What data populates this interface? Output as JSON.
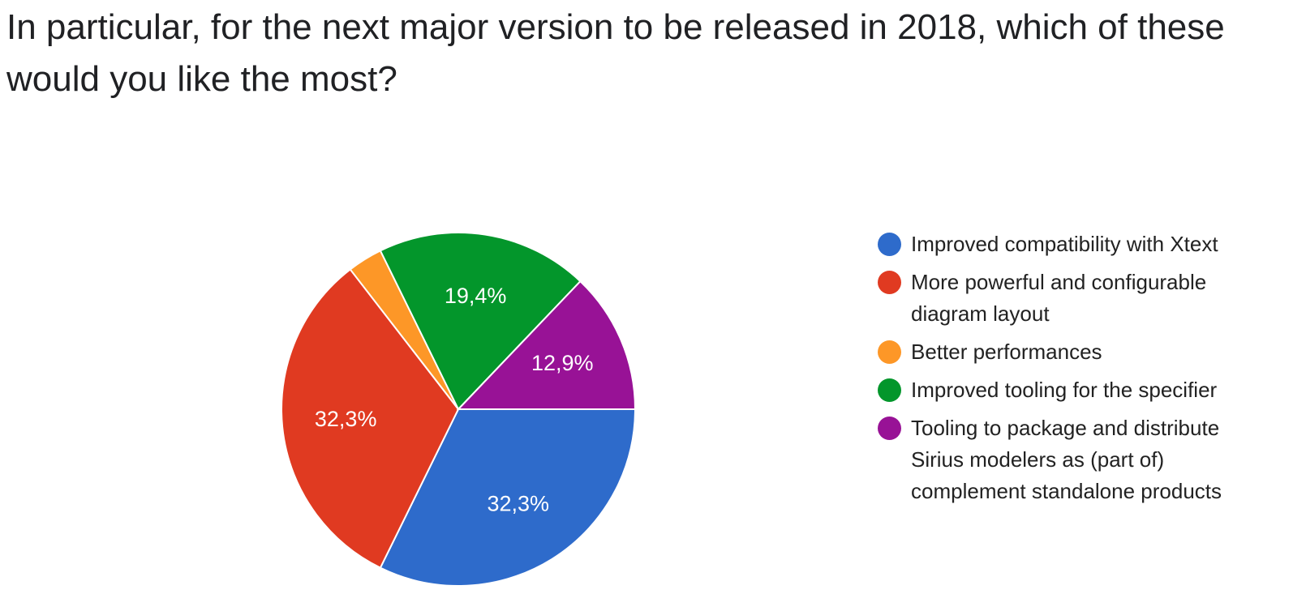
{
  "chart_data": {
    "type": "pie",
    "title": "In particular, for the next major version to be released in 2018, which of these would you like the most?",
    "categories": [
      "Improved compatibility with Xtext",
      "More powerful and configurable diagram layout",
      "Better performances",
      "Improved tooling for the specifier",
      "Tooling to package and distribute Sirius modelers as (part of) complement standalone products"
    ],
    "values": [
      32.3,
      32.3,
      3.2,
      19.4,
      12.9
    ],
    "value_labels": [
      "32,3%",
      "32,3%",
      null,
      "19,4%",
      "12,9%"
    ],
    "colors": [
      "#2e6bcb",
      "#e03a21",
      "#fd9727",
      "#03962b",
      "#981296"
    ],
    "legend": "right"
  }
}
